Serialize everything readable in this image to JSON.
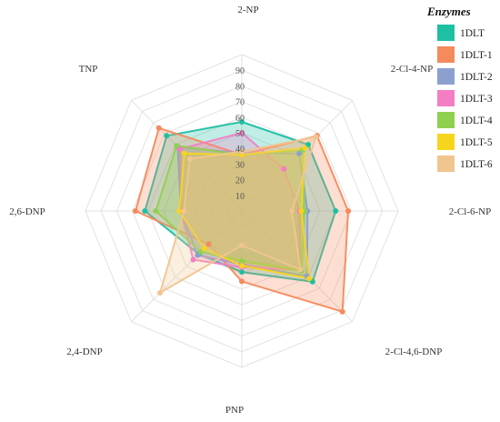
{
  "chart_data": {
    "type": "radar",
    "axes": [
      "2-NP",
      "2-Cl-4-NP",
      "2-Cl-6-NP",
      "2-Cl-4,6-DNP",
      "PNP",
      "2,4-DNP",
      "2,6-DNP",
      "TNP"
    ],
    "ticks": [
      "10",
      "20",
      "30",
      "40",
      "50",
      "60",
      "70",
      "80",
      "90"
    ],
    "rmax": 100,
    "legend_title": "Enzymes",
    "legend_position": "top-right",
    "grid": true,
    "series": [
      {
        "name": "1DLT",
        "color": "#1ebfa3",
        "values": [
          57,
          60,
          60,
          64,
          39,
          39,
          62,
          68
        ]
      },
      {
        "name": "1DLT-1",
        "color": "#f58a5c",
        "values": [
          36,
          68,
          68,
          91,
          45,
          30,
          68,
          75
        ]
      },
      {
        "name": "1DLT-2",
        "color": "#8ba0cf",
        "values": [
          37,
          52,
          42,
          59,
          34,
          40,
          39,
          58
        ]
      },
      {
        "name": "1DLT-3",
        "color": "#f37ec4",
        "values": [
          50,
          38,
          37,
          53,
          36,
          44,
          39,
          56
        ]
      },
      {
        "name": "1DLT-4",
        "color": "#8fd14f",
        "values": [
          36,
          55,
          40,
          54,
          32,
          37,
          55,
          59
        ]
      },
      {
        "name": "1DLT-5",
        "color": "#f7d51d",
        "values": [
          36,
          57,
          38,
          61,
          35,
          34,
          40,
          52
        ]
      },
      {
        "name": "1DLT-6",
        "color": "#f0c590",
        "values": [
          38,
          67,
          32,
          53,
          22,
          74,
          37,
          47
        ]
      }
    ]
  }
}
